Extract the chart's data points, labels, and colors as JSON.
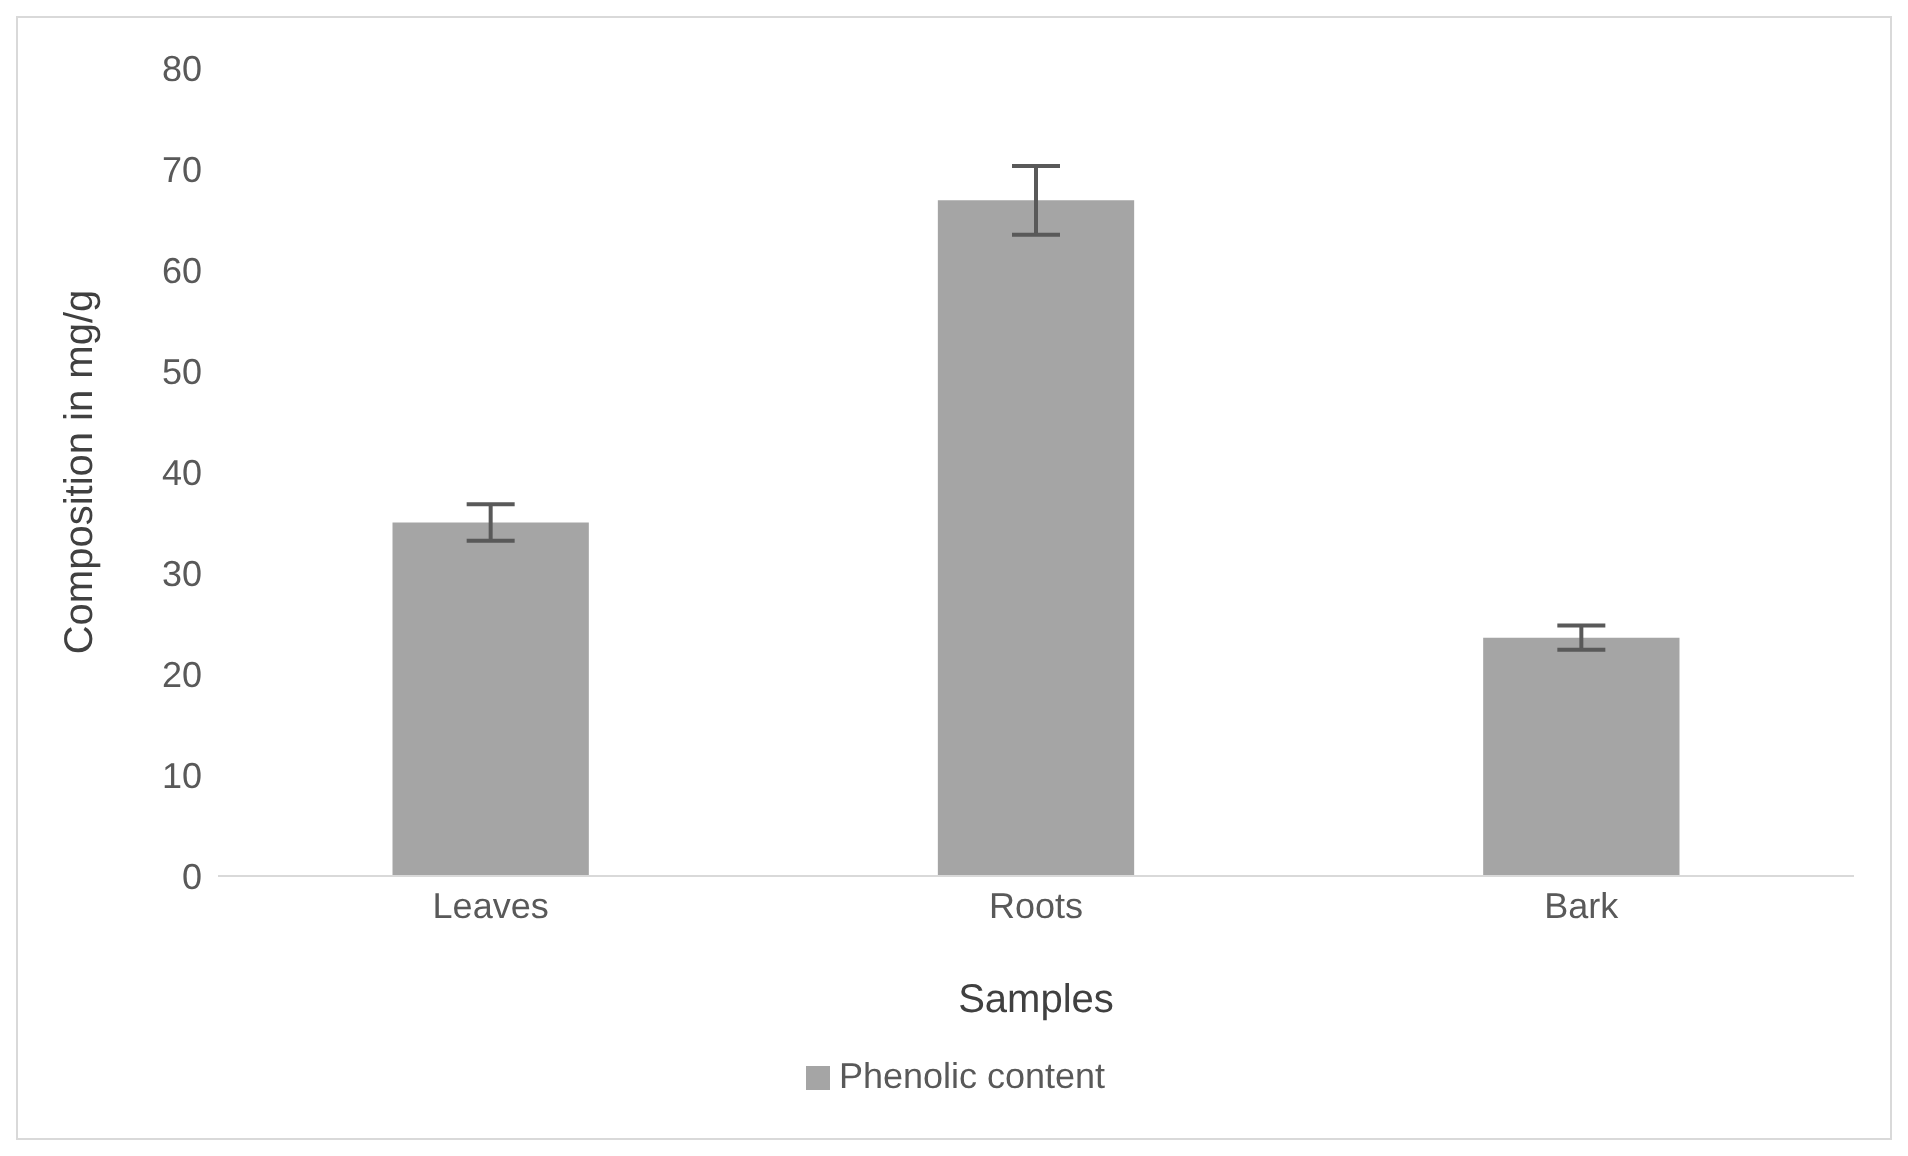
{
  "chart_data": {
    "type": "bar",
    "xlabel": "Samples",
    "ylabel": "Composition in mg/g",
    "categories": [
      "Leaves",
      "Roots",
      "Bark"
    ],
    "series": [
      {
        "name": "Phenolic content",
        "color": "#a5a5a5",
        "values": [
          35.0,
          66.9,
          23.6
        ],
        "errors": [
          1.8,
          3.4,
          1.2
        ]
      }
    ],
    "ylim": [
      0,
      80
    ],
    "yticks": [
      0,
      10,
      20,
      30,
      40,
      50,
      60,
      70,
      80
    ],
    "grid": false,
    "legend": "bottom"
  }
}
